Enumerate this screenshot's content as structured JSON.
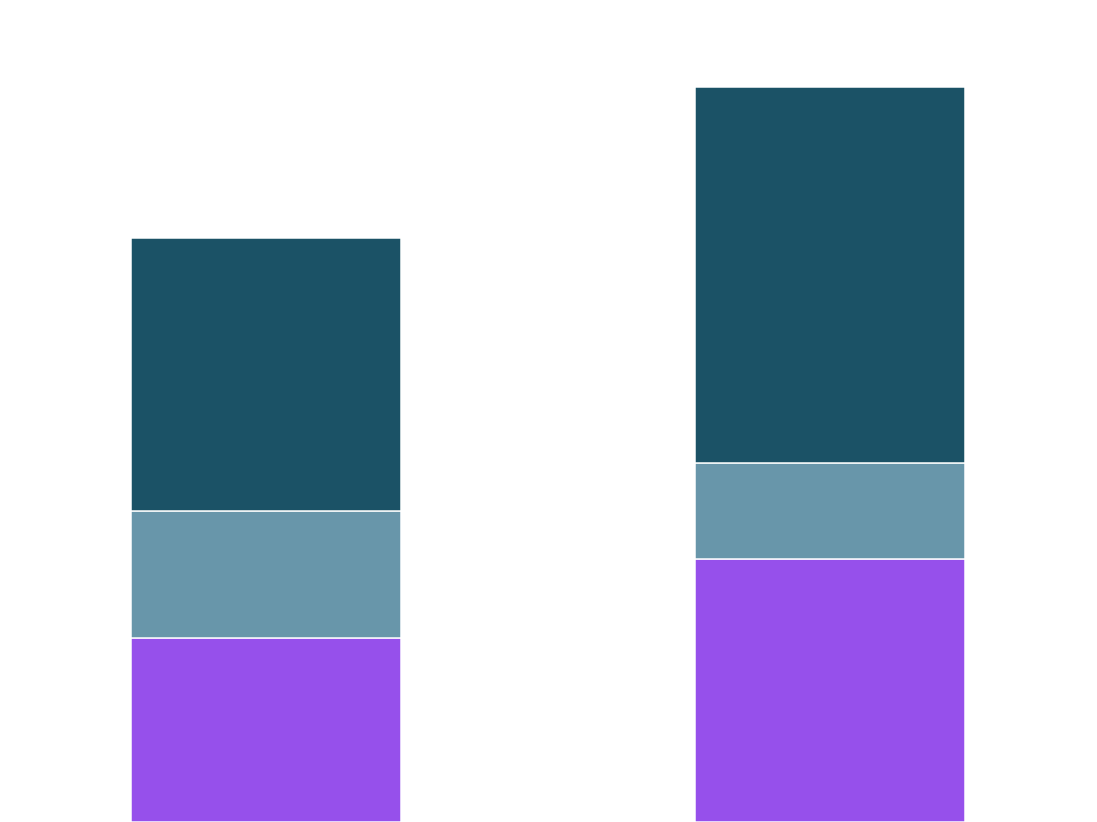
{
  "chart_data": {
    "type": "bar",
    "stacked": true,
    "title": "",
    "xlabel": "",
    "ylabel": "",
    "categories": [
      "",
      ""
    ],
    "ylim": [
      0,
      8.22
    ],
    "grid": false,
    "series": [
      {
        "values": [
          1.84,
          2.63
        ],
        "color": "#9650EB"
      },
      {
        "values": [
          1.27,
          0.96
        ],
        "color": "#6896AA"
      },
      {
        "values": [
          2.73,
          3.76
        ],
        "color": "#1B5266"
      }
    ]
  }
}
